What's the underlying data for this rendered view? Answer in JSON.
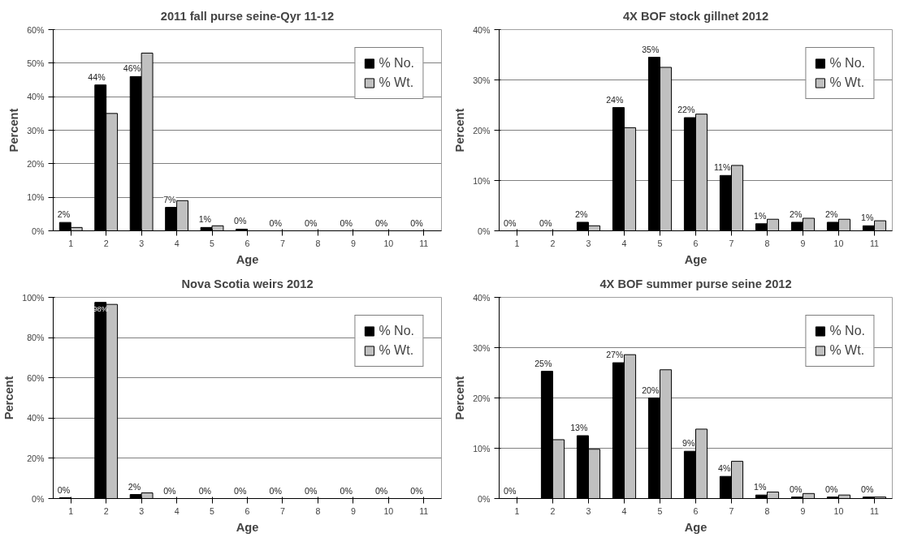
{
  "chart_data": [
    {
      "type": "bar",
      "title": "2011 fall purse seine-Qyr 11-12",
      "xlabel": "Age",
      "ylabel": "Percent",
      "categories": [
        "1",
        "2",
        "3",
        "4",
        "5",
        "6",
        "7",
        "8",
        "9",
        "10",
        "11"
      ],
      "series": [
        {
          "name": "% No.",
          "color": "#000000",
          "values": [
            2.5,
            43.5,
            46,
            7,
            1,
            0.5,
            0,
            0,
            0,
            0,
            0
          ],
          "value_labels": [
            "2%",
            "44%",
            "46%",
            "7%",
            "1%",
            "0%",
            "0%",
            "0%",
            "0%",
            "0%",
            "0%"
          ]
        },
        {
          "name": "% Wt.",
          "color": "#c0c0c0",
          "values": [
            1,
            35,
            53,
            9,
            1.5,
            0,
            0,
            0,
            0,
            0,
            0
          ]
        }
      ],
      "ylim": [
        0,
        60
      ],
      "yticks": [
        {
          "value": 0,
          "label": "0%"
        },
        {
          "value": 10,
          "label": "10%"
        },
        {
          "value": 20,
          "label": "20%"
        },
        {
          "value": 30,
          "label": "30%"
        },
        {
          "value": 40,
          "label": "40%"
        },
        {
          "value": 50,
          "label": "50%"
        },
        {
          "value": 60,
          "label": "60%"
        }
      ],
      "grid": "y",
      "legend": "top right"
    },
    {
      "type": "bar",
      "title": "4X BOF stock gillnet 2012",
      "xlabel": "Age",
      "ylabel": "Percent",
      "categories": [
        "1",
        "2",
        "3",
        "4",
        "5",
        "6",
        "7",
        "8",
        "9",
        "10",
        "11"
      ],
      "series": [
        {
          "name": "% No.",
          "color": "#000000",
          "values": [
            0,
            0,
            1.7,
            24.5,
            34.5,
            22.5,
            11,
            1.4,
            1.7,
            1.7,
            1
          ],
          "value_labels": [
            "0%",
            "0%",
            "2%",
            "24%",
            "35%",
            "22%",
            "11%",
            "1%",
            "2%",
            "2%",
            "1%"
          ]
        },
        {
          "name": "% Wt.",
          "color": "#c0c0c0",
          "values": [
            0,
            0,
            1,
            20.5,
            32.5,
            23.2,
            13,
            2.3,
            2.5,
            2.3,
            2
          ]
        }
      ],
      "ylim": [
        0,
        40
      ],
      "yticks": [
        {
          "value": 0,
          "label": "0%"
        },
        {
          "value": 10,
          "label": "10%"
        },
        {
          "value": 20,
          "label": "20%"
        },
        {
          "value": 30,
          "label": "30%"
        },
        {
          "value": 40,
          "label": "40%"
        }
      ],
      "grid": "y",
      "legend": "top right"
    },
    {
      "type": "bar",
      "title": "Nova Scotia weirs 2012",
      "xlabel": "Age",
      "ylabel": "Percent",
      "categories": [
        "1",
        "2",
        "3",
        "4",
        "5",
        "6",
        "7",
        "8",
        "9",
        "10",
        "11"
      ],
      "series": [
        {
          "name": "% No.",
          "color": "#000000",
          "values": [
            0.4,
            97.5,
            2,
            0,
            0,
            0,
            0,
            0,
            0,
            0,
            0
          ],
          "value_labels": [
            "0%",
            "98%",
            "2%",
            "0%",
            "0%",
            "0%",
            "0%",
            "0%",
            "0%",
            "0%",
            "0%"
          ]
        },
        {
          "name": "% Wt.",
          "color": "#c0c0c0",
          "values": [
            0,
            96.5,
            2.8,
            0,
            0,
            0,
            0,
            0,
            0,
            0,
            0
          ]
        }
      ],
      "ylim": [
        0,
        100
      ],
      "yticks": [
        {
          "value": 0,
          "label": "0%"
        },
        {
          "value": 20,
          "label": "20%"
        },
        {
          "value": 40,
          "label": "40%"
        },
        {
          "value": 60,
          "label": "60%"
        },
        {
          "value": 80,
          "label": "80%"
        },
        {
          "value": 100,
          "label": "100%"
        }
      ],
      "grid": "y",
      "legend": "top right"
    },
    {
      "type": "bar",
      "title": "4X BOF summer purse seine 2012",
      "xlabel": "Age",
      "ylabel": "Percent",
      "categories": [
        "1",
        "2",
        "3",
        "4",
        "5",
        "6",
        "7",
        "8",
        "9",
        "10",
        "11"
      ],
      "series": [
        {
          "name": "% No.",
          "color": "#000000",
          "values": [
            0,
            25.3,
            12.5,
            27,
            20,
            9.4,
            4.4,
            0.7,
            0.3,
            0.3,
            0.3
          ],
          "value_labels": [
            "0%",
            "25%",
            "13%",
            "27%",
            "20%",
            "9%",
            "4%",
            "1%",
            "0%",
            "0%",
            "0%"
          ]
        },
        {
          "name": "% Wt.",
          "color": "#c0c0c0",
          "values": [
            0,
            11.7,
            9.8,
            28.6,
            25.6,
            13.8,
            7.4,
            1.3,
            1,
            0.7,
            0.3
          ]
        }
      ],
      "ylim": [
        0,
        40
      ],
      "yticks": [
        {
          "value": 0,
          "label": "0%"
        },
        {
          "value": 10,
          "label": "10%"
        },
        {
          "value": 20,
          "label": "20%"
        },
        {
          "value": 30,
          "label": "30%"
        },
        {
          "value": 40,
          "label": "40%"
        }
      ],
      "grid": "y",
      "legend": "top right"
    }
  ]
}
